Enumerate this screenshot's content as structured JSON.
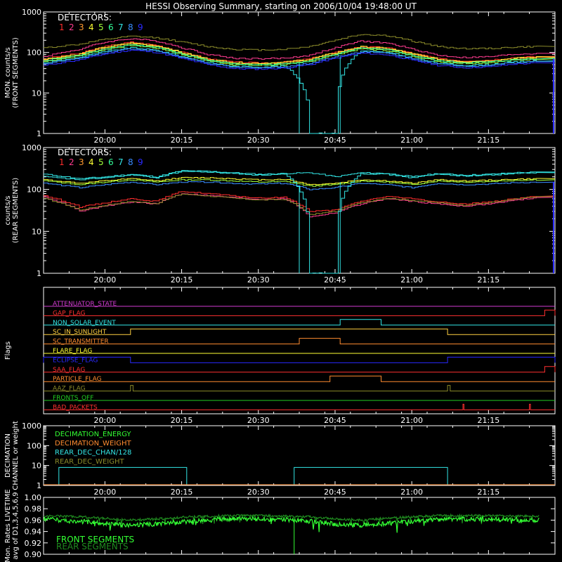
{
  "title": "HESSI Observing Summary, starting on 2006/10/04 19:48:00 UT",
  "x_ticks": [
    "20:00",
    "20:15",
    "20:30",
    "20:45",
    "21:00",
    "21:15"
  ],
  "detector_colors": [
    "#ff2d2d",
    "#ff3b8f",
    "#ff9a30",
    "#ffff33",
    "#a0ff3a",
    "#33ff99",
    "#33e6e6",
    "#3a8cff",
    "#2a2aff"
  ],
  "chart_data": [
    {
      "type": "line",
      "panel": "front",
      "ylabel": "MON. counts/s (FRONT SEGMENTS)",
      "ylabel_lines": [
        "MON. counts/s",
        "(FRONT SEGMENTS)"
      ],
      "yscale": "log",
      "ylim": [
        1,
        1000
      ],
      "y_ticks": [
        "1000",
        "100",
        "10",
        "1"
      ],
      "legend_title": "DETECTORS:",
      "legend_entries": [
        "1",
        "2",
        "3",
        "4",
        "5",
        "6",
        "7",
        "8",
        "9"
      ],
      "x": [
        "19:48",
        "19:55",
        "20:00",
        "20:05",
        "20:10",
        "20:15",
        "20:20",
        "20:25",
        "20:30",
        "20:35",
        "20:40",
        "20:45",
        "20:50",
        "20:55",
        "21:00",
        "21:05",
        "21:10",
        "21:15",
        "21:20",
        "21:25"
      ],
      "series": [
        {
          "name": "1",
          "values": [
            70,
            95,
            140,
            180,
            150,
            100,
            70,
            58,
            55,
            58,
            70,
            100,
            140,
            130,
            95,
            70,
            62,
            65,
            75,
            80
          ]
        },
        {
          "name": "2",
          "values": [
            80,
            120,
            180,
            220,
            190,
            130,
            90,
            72,
            70,
            72,
            85,
            130,
            190,
            170,
            120,
            85,
            75,
            78,
            90,
            95
          ]
        },
        {
          "name": "3",
          "values": [
            65,
            88,
            130,
            165,
            140,
            95,
            66,
            55,
            52,
            55,
            66,
            95,
            132,
            122,
            90,
            66,
            58,
            60,
            70,
            75
          ]
        },
        {
          "name": "4",
          "values": [
            68,
            92,
            135,
            170,
            145,
            98,
            68,
            56,
            54,
            57,
            68,
            98,
            138,
            126,
            92,
            68,
            60,
            62,
            72,
            77
          ]
        },
        {
          "name": "5",
          "values": [
            60,
            82,
            120,
            150,
            128,
            88,
            62,
            50,
            48,
            50,
            60,
            88,
            122,
            112,
            82,
            60,
            54,
            56,
            64,
            70
          ]
        },
        {
          "name": "6",
          "values": [
            62,
            85,
            125,
            155,
            132,
            90,
            64,
            52,
            50,
            52,
            62,
            90,
            126,
            116,
            85,
            62,
            56,
            58,
            66,
            72
          ]
        },
        {
          "name": "7",
          "values": [
            55,
            75,
            105,
            130,
            112,
            78,
            56,
            45,
            44,
            46,
            1,
            1,
            108,
            100,
            72,
            54,
            48,
            50,
            58,
            62
          ]
        },
        {
          "name": "8",
          "values": [
            52,
            72,
            100,
            125,
            108,
            75,
            54,
            43,
            42,
            44,
            54,
            78,
            104,
            96,
            70,
            52,
            46,
            48,
            56,
            60
          ]
        },
        {
          "name": "9",
          "values": [
            48,
            66,
            92,
            115,
            100,
            70,
            50,
            40,
            39,
            41,
            50,
            72,
            96,
            88,
            64,
            48,
            42,
            44,
            52,
            55
          ]
        },
        {
          "name": "olive",
          "values": [
            130,
            160,
            210,
            250,
            230,
            180,
            140,
            120,
            115,
            120,
            140,
            200,
            280,
            260,
            190,
            140,
            125,
            125,
            135,
            140
          ]
        }
      ]
    },
    {
      "type": "line",
      "panel": "rear",
      "ylabel": "counts/s (REAR SEGMENTS)",
      "ylabel_lines": [
        "counts/s",
        "(REAR SEGMENTS)"
      ],
      "yscale": "log",
      "ylim": [
        1,
        1000
      ],
      "y_ticks": [
        "1000",
        "100",
        "10",
        "1"
      ],
      "legend_title": "DETECTORS:",
      "legend_entries": [
        "1",
        "2",
        "3",
        "4",
        "5",
        "6",
        "7",
        "8",
        "9"
      ],
      "x": [
        "19:48",
        "19:55",
        "20:00",
        "20:05",
        "20:10",
        "20:15",
        "20:20",
        "20:25",
        "20:30",
        "20:35",
        "20:40",
        "20:45",
        "20:50",
        "20:55",
        "21:00",
        "21:05",
        "21:10",
        "21:15",
        "21:20",
        "21:25"
      ],
      "series": [
        {
          "name": "cyan",
          "values": [
            230,
            180,
            200,
            230,
            200,
            280,
            270,
            250,
            230,
            240,
            250,
            200,
            250,
            240,
            200,
            240,
            220,
            230,
            250,
            260
          ]
        },
        {
          "name": "yellow",
          "values": [
            170,
            140,
            160,
            180,
            160,
            190,
            190,
            180,
            170,
            175,
            130,
            140,
            170,
            160,
            140,
            170,
            160,
            165,
            175,
            180
          ]
        },
        {
          "name": "green",
          "values": [
            160,
            130,
            150,
            170,
            150,
            170,
            170,
            160,
            150,
            155,
            120,
            130,
            160,
            150,
            130,
            160,
            150,
            155,
            165,
            170
          ]
        },
        {
          "name": "blue",
          "values": [
            140,
            110,
            130,
            150,
            130,
            150,
            150,
            140,
            135,
            140,
            100,
            110,
            140,
            130,
            110,
            140,
            130,
            135,
            145,
            150
          ]
        },
        {
          "name": "red",
          "values": [
            70,
            38,
            48,
            60,
            52,
            90,
            80,
            70,
            62,
            65,
            30,
            32,
            52,
            68,
            60,
            50,
            45,
            50,
            60,
            70
          ]
        },
        {
          "name": "magenta",
          "values": [
            65,
            30,
            40,
            50,
            45,
            80,
            72,
            64,
            58,
            60,
            22,
            28,
            45,
            60,
            52,
            45,
            40,
            45,
            55,
            65
          ]
        },
        {
          "name": "olive",
          "values": [
            60,
            32,
            42,
            52,
            46,
            78,
            70,
            62,
            56,
            58,
            25,
            30,
            48,
            62,
            55,
            48,
            42,
            48,
            58,
            68
          ]
        },
        {
          "name": "cyan-gap",
          "values": [
            200,
            170,
            190,
            220,
            190,
            270,
            260,
            240,
            220,
            230,
            1,
            1,
            240,
            230,
            190,
            230,
            210,
            220,
            240,
            250
          ]
        }
      ]
    },
    {
      "type": "flags",
      "panel": "flags",
      "ylabel": "Flags",
      "flags": [
        {
          "name": "ATTENUATOR_STATE",
          "color": "#d23cd2",
          "steps": []
        },
        {
          "name": "GAP_FLAG",
          "color": "#ff3030",
          "steps": [
            {
              "from": "21:26",
              "to": "21:28"
            }
          ]
        },
        {
          "name": "NON_SOLAR_EVENT",
          "color": "#33e6e6",
          "steps": [
            {
              "from": "20:46",
              "to": "20:54"
            }
          ]
        },
        {
          "name": "SC_IN_SUNLIGHT",
          "color": "#ffd040",
          "steps": [
            {
              "from": "20:05",
              "to": "21:07"
            }
          ]
        },
        {
          "name": "SC_TRANSMITTER",
          "color": "#ff8c30",
          "steps": [
            {
              "from": "20:38",
              "to": "20:46"
            }
          ]
        },
        {
          "name": "FLARE_FLAG",
          "color": "#ffff33",
          "steps": []
        },
        {
          "name": "ECLIPSE_FLAG",
          "color": "#2a2aff",
          "steps": [
            {
              "from": "19:48",
              "to": "20:05"
            },
            {
              "from": "21:07",
              "to": "21:28"
            }
          ]
        },
        {
          "name": "SAA_FLAG",
          "color": "#ff3030",
          "steps": [
            {
              "from": "21:26",
              "to": "21:28"
            }
          ]
        },
        {
          "name": "PARTICLE_FLAG",
          "color": "#ff8c30",
          "steps": [
            {
              "from": "20:44",
              "to": "20:54"
            }
          ]
        },
        {
          "name": "AAZ_FLAG",
          "color": "#8a8a2a",
          "steps": [
            {
              "from": "20:05",
              "to": "20:05.5"
            },
            {
              "from": "21:07",
              "to": "21:07.5"
            }
          ]
        },
        {
          "name": "FRONTS_OFF",
          "color": "#22cc22",
          "steps": []
        },
        {
          "name": "BAD_PACKETS",
          "color": "#ff3030",
          "steps": [
            {
              "from": "21:10",
              "to": "21:10.2"
            },
            {
              "from": "21:23",
              "to": "21:23.2"
            }
          ]
        }
      ]
    },
    {
      "type": "line",
      "panel": "decimation",
      "ylabel": "DECIMATION CHANNEL or weight",
      "ylabel_lines": [
        "DECIMATION",
        "CHANNEL or weight"
      ],
      "yscale": "log",
      "ylim": [
        1,
        1000
      ],
      "y_ticks": [
        "1000",
        "100",
        "10",
        "1"
      ],
      "legend_entries": [
        {
          "name": "DECIMATION_ENERGY",
          "color": "#33ff33"
        },
        {
          "name": "DECIMATION_WEIGHT",
          "color": "#ff8c30"
        },
        {
          "name": "REAR_DEC_CHAN/128",
          "color": "#33e6e6"
        },
        {
          "name": "REAR_DEC_WEIGHT",
          "color": "#8a8a2a"
        }
      ],
      "segments": [
        {
          "from": "19:51",
          "to": "20:16",
          "value": 8
        },
        {
          "from": "20:37",
          "to": "21:07",
          "value": 8
        }
      ]
    },
    {
      "type": "line",
      "panel": "livetime",
      "ylabel": "Mon. Rates LIVETIME avg of D1,3,4,5,6,9",
      "ylabel_lines": [
        "Mon. Rates LIVETIME",
        "avg of D1,3,4,5,6,9"
      ],
      "ylim": [
        0.9,
        1.0
      ],
      "y_ticks": [
        "1.00",
        "0.98",
        "0.96",
        "0.94",
        "0.92",
        "0.90"
      ],
      "legend_entries": [
        {
          "name": "FRONT SEGMENTS",
          "color": "#33ff33"
        },
        {
          "name": "REAR SEGMENTS",
          "color": "#1f8a1f"
        }
      ],
      "x": [
        "19:48",
        "19:55",
        "20:00",
        "20:05",
        "20:10",
        "20:15",
        "20:20",
        "20:25",
        "20:30",
        "20:35",
        "20:40",
        "20:45",
        "20:50",
        "20:55",
        "21:00",
        "21:05",
        "21:10",
        "21:15",
        "21:20",
        "21:25"
      ],
      "series": [
        {
          "name": "FRONT SEGMENTS",
          "values": [
            0.966,
            0.962,
            0.958,
            0.955,
            0.957,
            0.961,
            0.964,
            0.966,
            0.966,
            0.965,
            0.962,
            0.957,
            0.955,
            0.958,
            0.962,
            0.965,
            0.966,
            0.966,
            0.965,
            0.964
          ]
        },
        {
          "name": "REAR SEGMENTS",
          "values": [
            0.97,
            0.968,
            0.965,
            0.962,
            0.964,
            0.967,
            0.969,
            0.97,
            0.97,
            0.969,
            0.968,
            0.964,
            0.962,
            0.965,
            0.968,
            0.97,
            0.97,
            0.97,
            0.969,
            0.969
          ]
        }
      ]
    }
  ]
}
